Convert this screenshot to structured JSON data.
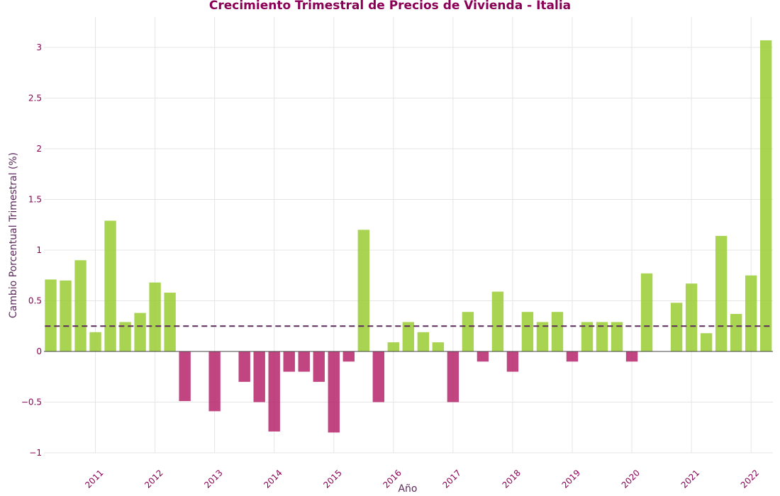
{
  "chart_data": {
    "type": "bar",
    "title": "Crecimiento Trimestral de Precios de Vivienda - Italia",
    "xlabel": "Año",
    "ylabel": "Cambio Porcentual Trimestral (%)",
    "ylim": [
      -1,
      3.3
    ],
    "y_ticks": [
      "−1",
      "−0.5",
      "0",
      "0.5",
      "1",
      "1.5",
      "2",
      "2.5",
      "3"
    ],
    "y_tick_values": [
      -1,
      -0.5,
      0,
      0.5,
      1,
      1.5,
      2,
      2.5,
      3
    ],
    "x_tick_labels": [
      "2011",
      "2012",
      "2013",
      "2014",
      "2015",
      "2016",
      "2017",
      "2018",
      "2019",
      "2020",
      "2021",
      "2022"
    ],
    "x_tick_quarter_index": [
      3,
      7,
      11,
      15,
      19,
      23,
      27,
      31,
      35,
      39,
      43,
      47
    ],
    "quarter_count": 49,
    "values": [
      0.71,
      0.7,
      0.9,
      0.19,
      1.29,
      0.29,
      0.38,
      0.68,
      0.58,
      -0.49,
      null,
      -0.59,
      null,
      -0.3,
      -0.5,
      -0.79,
      -0.2,
      -0.2,
      -0.3,
      -0.8,
      -0.1,
      1.2,
      -0.5,
      0.09,
      0.29,
      0.19,
      0.09,
      -0.5,
      0.39,
      -0.1,
      0.59,
      -0.2,
      0.39,
      0.29,
      0.39,
      -0.1,
      0.29,
      0.29,
      0.29,
      -0.1,
      0.77,
      null,
      0.48,
      0.67,
      0.18,
      1.14,
      0.37,
      0.75,
      3.07
    ],
    "reference_line": 0.25,
    "grid": true,
    "legend": false,
    "colors": {
      "positive": "#9ACD32",
      "negative": "#B5246B",
      "mean_line": "#5B2A5B",
      "title": "#8B0057",
      "axis_text": "#8B0057",
      "axis_title": "#5B2A5B",
      "grid": "#e5e5e5",
      "zero_line": "#444444"
    }
  }
}
